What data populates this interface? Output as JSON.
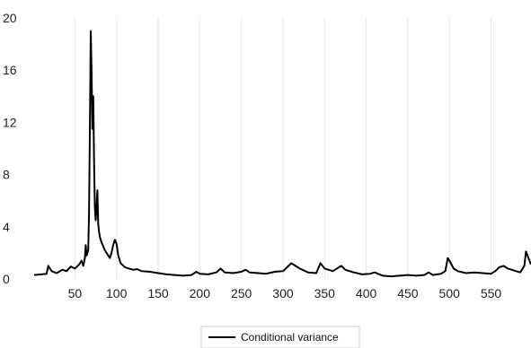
{
  "chart_data": {
    "type": "line",
    "title": "",
    "xlabel": "",
    "ylabel": "",
    "xlim": [
      1,
      598
    ],
    "ylim": [
      0,
      20
    ],
    "x_ticks": [
      50,
      100,
      150,
      200,
      250,
      300,
      350,
      400,
      450,
      500,
      550
    ],
    "y_ticks": [
      0,
      4,
      8,
      12,
      16,
      20
    ],
    "grid": "vertical gridlines",
    "legend": "bottom-center",
    "series": [
      {
        "name": "Conditional variance",
        "color": "#000000",
        "points": [
          [
            1,
            0.3
          ],
          [
            10,
            0.35
          ],
          [
            16,
            0.4
          ],
          [
            18,
            1.0
          ],
          [
            22,
            0.6
          ],
          [
            28,
            0.45
          ],
          [
            35,
            0.7
          ],
          [
            40,
            0.6
          ],
          [
            45,
            0.95
          ],
          [
            50,
            0.8
          ],
          [
            55,
            1.1
          ],
          [
            58,
            1.4
          ],
          [
            60,
            1.0
          ],
          [
            62,
            1.6
          ],
          [
            63,
            2.6
          ],
          [
            64,
            1.8
          ],
          [
            66,
            2.2
          ],
          [
            67,
            5.0
          ],
          [
            68,
            12.0
          ],
          [
            69,
            19.0
          ],
          [
            70,
            16.0
          ],
          [
            71,
            11.5
          ],
          [
            72,
            14.0
          ],
          [
            73,
            9.0
          ],
          [
            74,
            5.5
          ],
          [
            75,
            4.5
          ],
          [
            76,
            5.5
          ],
          [
            77,
            6.8
          ],
          [
            78,
            4.2
          ],
          [
            79,
            3.6
          ],
          [
            80,
            3.2
          ],
          [
            82,
            2.8
          ],
          [
            84,
            2.5
          ],
          [
            86,
            2.2
          ],
          [
            88,
            2.0
          ],
          [
            90,
            1.8
          ],
          [
            92,
            1.6
          ],
          [
            94,
            2.0
          ],
          [
            96,
            2.6
          ],
          [
            98,
            3.0
          ],
          [
            100,
            2.7
          ],
          [
            102,
            1.8
          ],
          [
            105,
            1.2
          ],
          [
            110,
            0.9
          ],
          [
            115,
            0.8
          ],
          [
            120,
            0.7
          ],
          [
            125,
            0.75
          ],
          [
            130,
            0.6
          ],
          [
            140,
            0.55
          ],
          [
            150,
            0.45
          ],
          [
            160,
            0.35
          ],
          [
            170,
            0.3
          ],
          [
            180,
            0.25
          ],
          [
            190,
            0.3
          ],
          [
            196,
            0.55
          ],
          [
            200,
            0.4
          ],
          [
            210,
            0.35
          ],
          [
            220,
            0.5
          ],
          [
            225,
            0.8
          ],
          [
            230,
            0.5
          ],
          [
            240,
            0.45
          ],
          [
            250,
            0.55
          ],
          [
            255,
            0.7
          ],
          [
            260,
            0.5
          ],
          [
            270,
            0.45
          ],
          [
            280,
            0.4
          ],
          [
            290,
            0.55
          ],
          [
            300,
            0.6
          ],
          [
            305,
            0.9
          ],
          [
            310,
            1.2
          ],
          [
            315,
            1.0
          ],
          [
            320,
            0.8
          ],
          [
            330,
            0.5
          ],
          [
            340,
            0.45
          ],
          [
            345,
            1.2
          ],
          [
            350,
            0.8
          ],
          [
            360,
            0.6
          ],
          [
            370,
            1.0
          ],
          [
            375,
            0.7
          ],
          [
            385,
            0.5
          ],
          [
            395,
            0.35
          ],
          [
            405,
            0.4
          ],
          [
            410,
            0.5
          ],
          [
            420,
            0.25
          ],
          [
            430,
            0.2
          ],
          [
            440,
            0.25
          ],
          [
            450,
            0.3
          ],
          [
            460,
            0.25
          ],
          [
            470,
            0.3
          ],
          [
            475,
            0.5
          ],
          [
            480,
            0.3
          ],
          [
            490,
            0.4
          ],
          [
            495,
            0.6
          ],
          [
            498,
            1.6
          ],
          [
            500,
            1.4
          ],
          [
            505,
            0.8
          ],
          [
            510,
            0.6
          ],
          [
            520,
            0.45
          ],
          [
            530,
            0.5
          ],
          [
            540,
            0.45
          ],
          [
            550,
            0.4
          ],
          [
            555,
            0.6
          ],
          [
            560,
            0.9
          ],
          [
            565,
            1.0
          ],
          [
            570,
            0.8
          ],
          [
            575,
            0.7
          ],
          [
            580,
            0.6
          ],
          [
            585,
            0.5
          ],
          [
            590,
            1.0
          ],
          [
            592,
            2.1
          ],
          [
            595,
            1.6
          ],
          [
            598,
            1.1
          ]
        ]
      }
    ]
  }
}
